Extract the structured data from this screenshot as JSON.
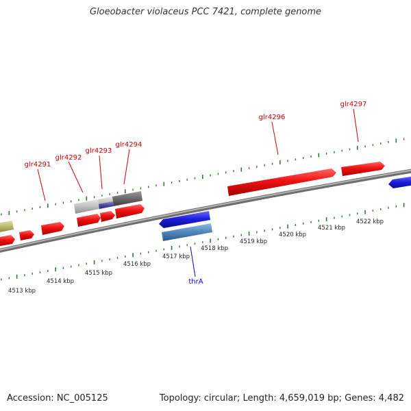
{
  "title": "Gloeobacter violaceus PCC 7421, complete genome",
  "footer": {
    "accession": "Accession: NC_005125",
    "summary": "Topology: circular; Length: 4,659,019 bp; Genes: 4,482"
  },
  "colors": {
    "backbone": "#8c8c8c",
    "tick": "#2e7d2e",
    "gene_forward": "#ee1111",
    "gene_reverse": "#1f1fe0",
    "gene_grey": "#c0c0c0",
    "gene_dark": "#6a6a6a",
    "gene_purple": "#4a4aa0",
    "gene_steel": "#4f86b8",
    "gene_olive": "#b8b86a",
    "label_forward": "#cc0000",
    "label_reverse": "#0000cc"
  },
  "axis": {
    "unit": "kbp",
    "labels": [
      "4513 kbp",
      "4514 kbp",
      "4515 kbp",
      "4516 kbp",
      "4517 kbp",
      "4518 kbp",
      "4519 kbp",
      "4520 kbp",
      "4521 kbp",
      "4522 kbp"
    ]
  },
  "genes": [
    {
      "name": "glr4291",
      "strand": "forward"
    },
    {
      "name": "glr4292",
      "strand": "forward"
    },
    {
      "name": "glr4293",
      "strand": "forward"
    },
    {
      "name": "glr4294",
      "strand": "forward"
    },
    {
      "name": "glr4296",
      "strand": "forward"
    },
    {
      "name": "glr4297",
      "strand": "forward"
    },
    {
      "name": "thrA",
      "strand": "reverse"
    }
  ]
}
